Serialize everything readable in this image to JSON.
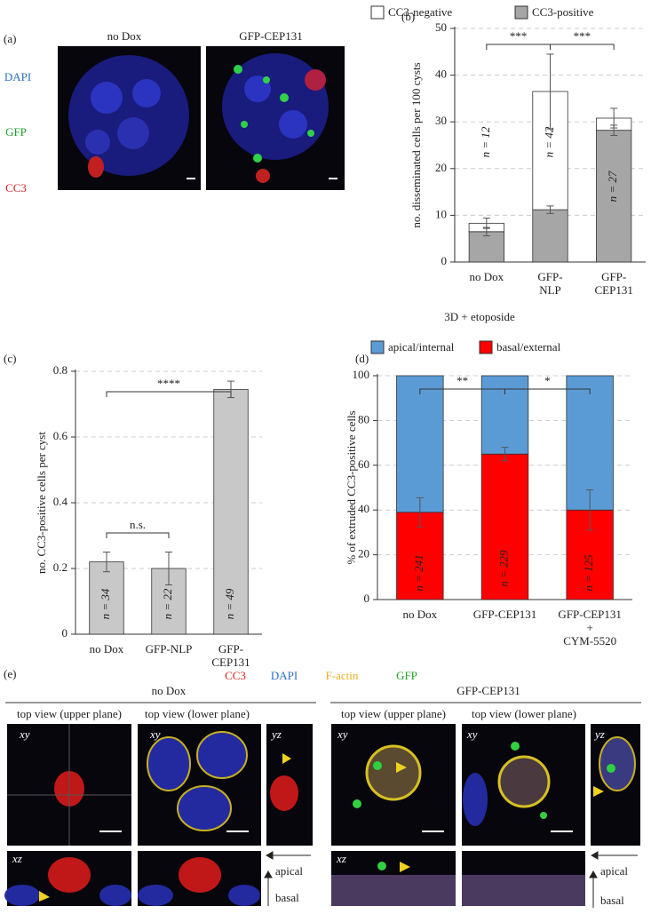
{
  "panel_a": {
    "label": "(a)",
    "columns": [
      "no Dox",
      "GFP-CEP131"
    ],
    "channels": [
      "DAPI",
      "GFP",
      "CC3"
    ]
  },
  "chart_data": [
    {
      "type": "bar",
      "stacked": true,
      "panel_label": "(b)",
      "categories": [
        "no Dox",
        "GFP-\nNLP",
        "GFP-\nCEP131"
      ],
      "series": [
        {
          "name": "CC3-positive",
          "color": "#a6a6a6",
          "values": [
            6.5,
            11.2,
            28.2
          ],
          "errors": [
            0.9,
            0.8,
            1.1
          ]
        },
        {
          "name": "CC3-negative",
          "color": "#ffffff",
          "values": [
            1.8,
            25.3,
            2.6
          ],
          "errors": [
            1.1,
            8,
            2.1
          ]
        }
      ],
      "ylim": [
        0,
        50
      ],
      "yticks": [
        0,
        10,
        20,
        30,
        40,
        50
      ],
      "grid": true,
      "ylabel": "no. disseminated cells per 100 cysts",
      "bar_labels": [
        "n = 12",
        "n = 42",
        "n = 27"
      ],
      "significance": [
        "***",
        "***"
      ]
    },
    {
      "type": "bar",
      "panel_label": "(c)",
      "categories": [
        "no Dox",
        "GFP-NLP",
        "GFP-\nCEP131"
      ],
      "values": [
        0.22,
        0.2,
        0.745
      ],
      "errors": [
        0.03,
        0.05,
        0.025
      ],
      "color": "#c8c8c8",
      "ylim": [
        0,
        0.8
      ],
      "yticks": [
        0,
        0.2,
        0.4,
        0.6,
        0.8
      ],
      "grid": true,
      "ylabel": "no. CC3-positive cells per cyst",
      "bar_labels": [
        "n = 34",
        "n = 22",
        "n = 49"
      ],
      "significance": [
        "****",
        "n.s."
      ]
    },
    {
      "type": "bar",
      "stacked": true,
      "panel_label": "(d)",
      "title": "3D + etoposide",
      "categories": [
        "no Dox",
        "GFP-CEP131",
        "GFP-CEP131\n+\nCYM-5520"
      ],
      "series": [
        {
          "name": "basal/external",
          "color": "#ff0000",
          "values": [
            39,
            65,
            40
          ],
          "errors": [
            6.5,
            3,
            9
          ]
        },
        {
          "name": "apical/internal",
          "color": "#5b9bd5",
          "values": [
            61,
            35,
            60
          ]
        }
      ],
      "ylim": [
        0,
        100
      ],
      "yticks": [
        0,
        20,
        40,
        60,
        80,
        100
      ],
      "grid": true,
      "ylabel": "% of extruded CC3-positive cells",
      "bar_labels": [
        "n = 241",
        "n = 229",
        "n = 125"
      ],
      "significance": [
        "**",
        "*"
      ]
    }
  ],
  "panel_e": {
    "label": "(e)",
    "channels": [
      "CC3",
      "DAPI",
      "F-actin",
      "GFP"
    ],
    "groups": [
      {
        "title": "no Dox",
        "views": [
          "top view (upper plane)",
          "top view (lower plane)"
        ]
      },
      {
        "title": "GFP-CEP131",
        "views": [
          "top view (upper plane)",
          "top view (lower plane)"
        ]
      }
    ],
    "planes": [
      "xy",
      "yz",
      "xz"
    ],
    "directions": [
      "apical",
      "basal"
    ]
  }
}
